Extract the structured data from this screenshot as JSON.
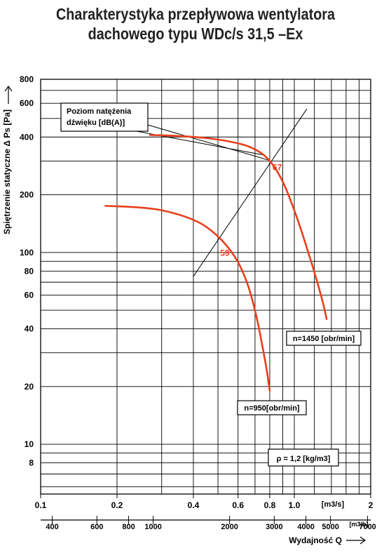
{
  "title": {
    "line1": "Charakterystyka przepływowa wentylatora",
    "line2": "dachowego typu WDc/s 31,5 –Ex"
  },
  "chart_data": {
    "type": "line",
    "title": "Charakterystyka przepływowa wentylatora dachowego typu WDc/s 31,5 –Ex",
    "xscale": "log",
    "yscale": "log",
    "xlim": [
      0.1,
      2
    ],
    "ylim": [
      5.5,
      800
    ],
    "grid": true,
    "xlabel": "Wydajność Q",
    "ylabel": "Spiętrzenie statyczne Δ Ps [Pa]",
    "x_unit_primary": "[m3/s]",
    "x_unit_secondary": "[m3/h]",
    "x_ticks_primary": [
      {
        "value": 0.1,
        "label": "0.1"
      },
      {
        "value": 0.2,
        "label": "0.2"
      },
      {
        "value": 0.4,
        "label": "0.4"
      },
      {
        "value": 0.6,
        "label": "0.6"
      },
      {
        "value": 0.8,
        "label": "0.8"
      },
      {
        "value": 1.0,
        "label": "1.0"
      },
      {
        "value": 2,
        "label": "2"
      }
    ],
    "x_ticks_secondary": [
      {
        "value": 400,
        "label": "400"
      },
      {
        "value": 600,
        "label": "600"
      },
      {
        "value": 800,
        "label": "800"
      },
      {
        "value": 1000,
        "label": "1000"
      },
      {
        "value": 2000,
        "label": "2000"
      },
      {
        "value": 3000,
        "label": "3000"
      },
      {
        "value": 4000,
        "label": "4000"
      },
      {
        "value": 5000,
        "label": "5000"
      },
      {
        "value": 7000,
        "label": "7000"
      }
    ],
    "y_ticks": [
      {
        "value": 8,
        "label": "8"
      },
      {
        "value": 10,
        "label": "10"
      },
      {
        "value": 20,
        "label": "20"
      },
      {
        "value": 40,
        "label": "40"
      },
      {
        "value": 60,
        "label": "60"
      },
      {
        "value": 80,
        "label": "80"
      },
      {
        "value": 100,
        "label": "100"
      },
      {
        "value": 200,
        "label": "200"
      },
      {
        "value": 400,
        "label": "400"
      },
      {
        "value": 600,
        "label": "600"
      },
      {
        "value": 800,
        "label": "800"
      }
    ],
    "series": [
      {
        "name": "n=1450 [obr/min]",
        "color": "#e8401c",
        "x": [
          0.27,
          0.35,
          0.45,
          0.55,
          0.65,
          0.74,
          0.8,
          0.86,
          0.92,
          0.98,
          1.05,
          1.13,
          1.21,
          1.3,
          1.34
        ],
        "y": [
          410,
          405,
          395,
          380,
          360,
          330,
          300,
          262,
          220,
          178,
          138,
          102,
          76,
          54,
          45
        ]
      },
      {
        "name": "n=950[obr/min]",
        "color": "#e8401c",
        "x": [
          0.18,
          0.24,
          0.3,
          0.38,
          0.45,
          0.53,
          0.6,
          0.66,
          0.71,
          0.75,
          0.78,
          0.8
        ],
        "y": [
          175,
          172,
          166,
          152,
          136,
          112,
          89,
          66,
          46,
          32,
          24,
          19
        ]
      }
    ],
    "noise_line": {
      "x": [
        0.4,
        1.12
      ],
      "y": [
        75,
        560
      ]
    },
    "annotations": {
      "noise_box_line1": "Poziom natężenia",
      "noise_box_line2": "dźwięku [dB(A)]",
      "noise_label_high": "67",
      "noise_label_low": "59",
      "density": "ρ = 1,2 [kg/m3]"
    }
  }
}
